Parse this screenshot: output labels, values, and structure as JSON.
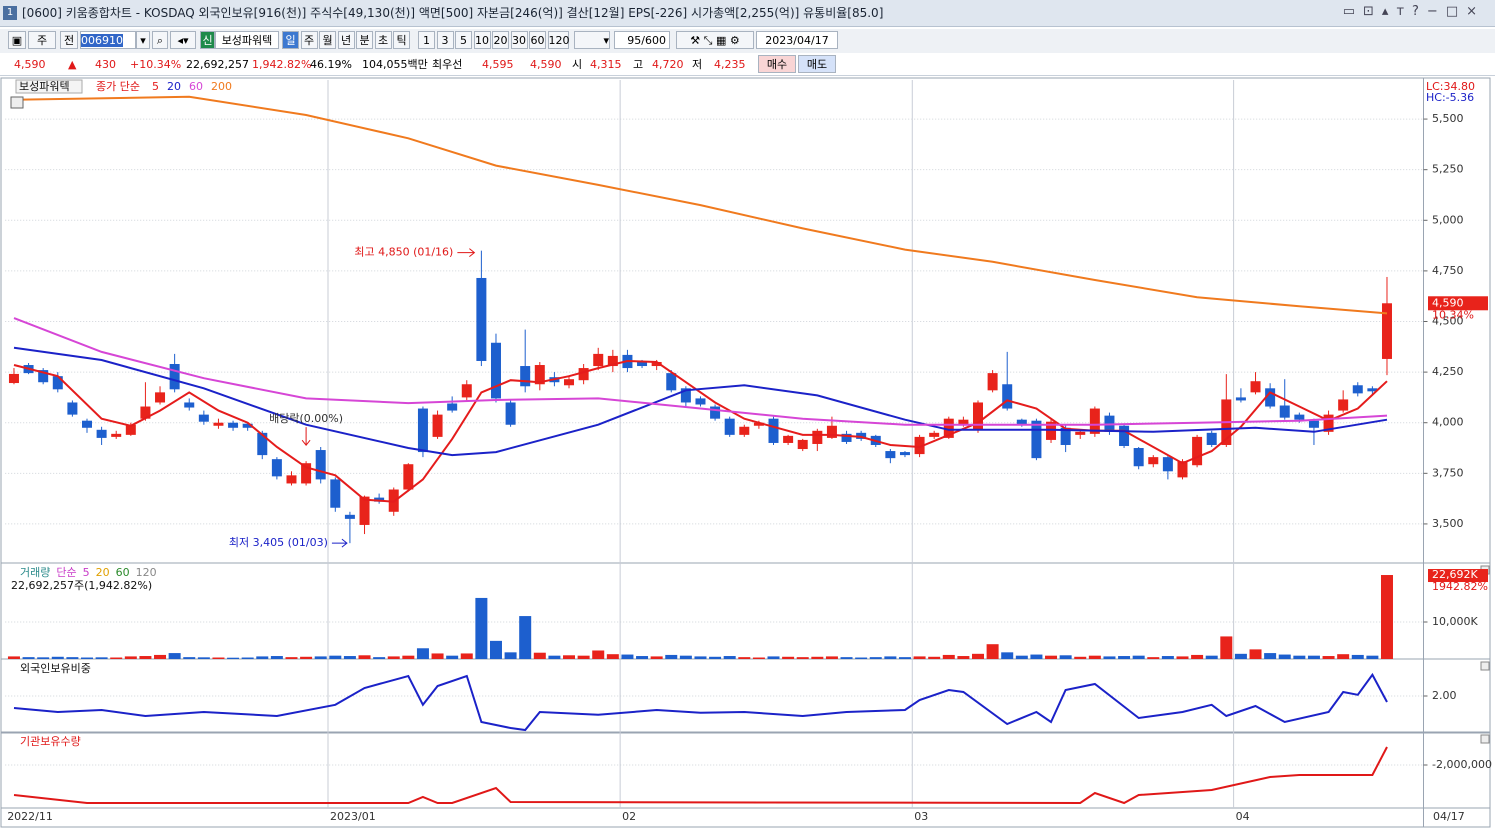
{
  "window": {
    "title": "[0600] 키움종합차트 - KOSDAQ 외국인보유[916(천)] 주식수[49,130(천)] 액면[500] 자본금[246(억)] 결산[12월] EPS[-226] 시가총액[2,255(억)] 유통비율[85.0]"
  },
  "toolbar": {
    "period": "주",
    "range": "전",
    "code": "006910",
    "badge": "신",
    "name": "보성파워텍",
    "units": [
      "일",
      "주",
      "월",
      "년",
      "분",
      "초",
      "틱"
    ],
    "minutes": [
      "1",
      "3",
      "5",
      "10",
      "20",
      "30",
      "60",
      "120"
    ],
    "count": "95/600",
    "date": "2023/04/17"
  },
  "quote": {
    "price": "4,590",
    "arrow": "▲",
    "change": "430",
    "rate": "+10.34%",
    "volume": "22,692,257",
    "volume_rate": "1,942.82%",
    "turnover": "46.19%",
    "amount": "104,055백만",
    "best": "최우선",
    "ask": "4,595",
    "bid": "4,590",
    "open_label": "시",
    "open": "4,315",
    "high_label": "고",
    "high": "4,720",
    "low_label": "저",
    "low": "4,235",
    "buy": "매수",
    "sell": "매도"
  },
  "chart_data": [
    {
      "type": "candlestick",
      "name": "보성파워텍",
      "legend_title": "종가 단순",
      "up_color": "#e8231b",
      "down_color": "#1d5fce",
      "open": [
        4196,
        4285,
        4260,
        4230,
        4100,
        4010,
        3965,
        3930,
        3940,
        4020,
        4100,
        4290,
        4100,
        4040,
        3985,
        4000,
        3995,
        3950,
        3820,
        3700,
        3700,
        3865,
        3720,
        3545,
        3495,
        3630,
        3560,
        3670,
        4070,
        3930,
        4095,
        4125,
        4715,
        4395,
        4100,
        4280,
        4190,
        4225,
        4185,
        4210,
        4280,
        4280,
        4335,
        4300,
        4280,
        4245,
        4170,
        4120,
        4080,
        4020,
        3940,
        3985,
        4020,
        3900,
        3870,
        3895,
        3925,
        3945,
        3950,
        3935,
        3860,
        3855,
        3845,
        3930,
        3925,
        3990,
        3965,
        4160,
        4190,
        4015,
        4010,
        3915,
        3975,
        3940,
        3945,
        4035,
        3985,
        3875,
        3795,
        3830,
        3730,
        3790,
        3950,
        3890,
        4125,
        4150,
        4170,
        4085,
        4040,
        4010,
        3955,
        4060,
        4185,
        4170,
        4315
      ],
      "high": [
        4270,
        4295,
        4270,
        4250,
        4110,
        4020,
        3980,
        3960,
        4000,
        4200,
        4180,
        4340,
        4120,
        4060,
        4020,
        4010,
        4000,
        3960,
        3830,
        3760,
        3810,
        3880,
        3730,
        3560,
        3640,
        3650,
        3680,
        3800,
        4080,
        4060,
        4130,
        4210,
        4850,
        4440,
        4110,
        4460,
        4300,
        4250,
        4230,
        4290,
        4370,
        4360,
        4360,
        4310,
        4310,
        4260,
        4180,
        4130,
        4090,
        4030,
        3990,
        4010,
        4030,
        3940,
        3920,
        3970,
        4030,
        3960,
        3960,
        3940,
        3870,
        3860,
        3940,
        3960,
        4030,
        4030,
        4110,
        4260,
        4350,
        4020,
        4020,
        4020,
        3990,
        3960,
        4080,
        4050,
        3990,
        3880,
        3840,
        3840,
        3820,
        3940,
        3960,
        4240,
        4170,
        4250,
        4195,
        4215,
        4050,
        4020,
        4060,
        4160,
        4200,
        4180,
        4720
      ],
      "low": [
        4190,
        4240,
        4190,
        4150,
        4030,
        3950,
        3890,
        3920,
        3935,
        4010,
        4090,
        4150,
        4060,
        3990,
        3970,
        3960,
        3960,
        3820,
        3720,
        3690,
        3690,
        3700,
        3560,
        3405,
        3450,
        3600,
        3540,
        3660,
        3830,
        3920,
        4050,
        4110,
        4280,
        4100,
        3980,
        4150,
        4160,
        4180,
        4170,
        4190,
        4260,
        4250,
        4250,
        4270,
        4260,
        4150,
        4080,
        4080,
        4010,
        3930,
        3930,
        3970,
        3890,
        3890,
        3860,
        3860,
        3920,
        3895,
        3910,
        3880,
        3800,
        3830,
        3830,
        3920,
        3920,
        3980,
        3950,
        4150,
        4060,
        3980,
        3815,
        3900,
        3855,
        3920,
        3930,
        3940,
        3875,
        3770,
        3780,
        3720,
        3720,
        3780,
        3880,
        3880,
        4100,
        4140,
        4070,
        4015,
        4000,
        3890,
        3940,
        4050,
        4130,
        4140,
        4235
      ],
      "close": [
        4241,
        4245,
        4200,
        4165,
        4040,
        3975,
        3925,
        3945,
        3990,
        4080,
        4150,
        4165,
        4075,
        4005,
        4000,
        3975,
        3975,
        3840,
        3735,
        3740,
        3800,
        3720,
        3580,
        3525,
        3635,
        3610,
        3670,
        3795,
        3855,
        4040,
        4060,
        4190,
        4305,
        4120,
        3990,
        4180,
        4285,
        4200,
        4215,
        4270,
        4340,
        4330,
        4270,
        4280,
        4300,
        4160,
        4100,
        4090,
        4020,
        3940,
        3980,
        4000,
        3900,
        3935,
        3915,
        3960,
        3985,
        3905,
        3920,
        3890,
        3825,
        3840,
        3930,
        3950,
        4020,
        4015,
        4100,
        4245,
        4070,
        3990,
        3825,
        4005,
        3890,
        3955,
        4070,
        3955,
        3885,
        3785,
        3830,
        3760,
        3810,
        3930,
        3890,
        4115,
        4110,
        4205,
        4080,
        4025,
        4015,
        3975,
        4040,
        4115,
        4145,
        4155,
        4590
      ],
      "series": [
        {
          "name": "5",
          "color": "#e51c1c",
          "x": [
            0,
            3,
            6,
            8,
            10,
            12,
            14,
            16,
            18,
            20,
            22,
            24,
            26,
            28,
            30,
            32,
            34,
            36,
            38,
            40,
            42,
            44,
            46,
            48,
            50,
            52,
            54,
            56,
            58,
            60,
            62,
            64,
            66,
            68,
            70,
            72,
            74,
            76,
            78,
            80,
            82,
            84,
            86,
            88,
            90,
            92,
            94
          ],
          "values": [
            4285,
            4230,
            4020,
            3985,
            4060,
            4150,
            4060,
            4000,
            3880,
            3780,
            3740,
            3620,
            3610,
            3720,
            3920,
            4150,
            4210,
            4200,
            4230,
            4270,
            4305,
            4300,
            4200,
            4100,
            4020,
            3980,
            3940,
            3940,
            3930,
            3890,
            3880,
            3940,
            4000,
            4110,
            4070,
            3970,
            3960,
            3960,
            3880,
            3800,
            3860,
            3980,
            4150,
            4080,
            4010,
            4070,
            4205
          ]
        },
        {
          "name": "20",
          "color": "#1b22c8",
          "x": [
            0,
            6,
            13,
            20,
            27,
            30,
            33,
            40,
            46,
            50,
            55,
            61,
            64,
            71,
            78,
            85,
            89,
            94
          ],
          "values": [
            4370,
            4310,
            4170,
            3990,
            3875,
            3840,
            3855,
            3990,
            4160,
            4185,
            4135,
            4015,
            3965,
            3965,
            3955,
            3975,
            3955,
            4015
          ]
        },
        {
          "name": "60",
          "color": "#d646d6",
          "x": [
            0,
            6,
            13,
            20,
            27,
            33,
            40,
            47,
            54,
            61,
            67,
            74,
            81,
            88,
            94
          ],
          "values": [
            4517,
            4350,
            4220,
            4120,
            4097,
            4112,
            4120,
            4070,
            4020,
            3990,
            3990,
            3990,
            4000,
            4010,
            4035
          ]
        },
        {
          "name": "200",
          "color": "#f07a1e",
          "x": [
            0,
            12,
            20,
            27,
            33,
            40,
            47,
            54,
            61,
            67,
            74,
            81,
            88,
            94
          ],
          "values": [
            5595,
            5610,
            5520,
            5405,
            5270,
            5175,
            5075,
            4960,
            4855,
            4795,
            4705,
            4620,
            4575,
            4540
          ]
        }
      ],
      "xlim": [
        -0.6,
        96.5
      ],
      "ylim": [
        3307,
        5693
      ],
      "yticks": [
        {
          "value": 3500,
          "label": "3,500"
        },
        {
          "value": 3750,
          "label": "3,750"
        },
        {
          "value": 4000,
          "label": "4,000"
        },
        {
          "value": 4250,
          "label": "4,250"
        },
        {
          "value": 4500,
          "label": "4,500"
        },
        {
          "value": 4750,
          "label": "4,750"
        },
        {
          "value": 5000,
          "label": "5,000"
        },
        {
          "value": 5250,
          "label": "5,250"
        },
        {
          "value": 5500,
          "label": "5,500"
        }
      ],
      "xticks": [
        {
          "value": -0.6,
          "label": "2022/11"
        },
        {
          "value": 21.5,
          "label": "2023/01"
        },
        {
          "value": 41.5,
          "label": "02"
        },
        {
          "value": 61.5,
          "label": "03"
        },
        {
          "value": 83.5,
          "label": "04"
        }
      ],
      "x_end_label": "04/17",
      "grid": true,
      "current_label": "4,590",
      "current_rate": "10.34%",
      "lc": "LC:34.80",
      "hc": "HC:-5.36",
      "annotations": [
        {
          "text": "최고 4,850 (01/16)",
          "at": 32,
          "kind": "high"
        },
        {
          "text": "최저 3,405 (01/03)",
          "at": 23,
          "kind": "low"
        },
        {
          "text": "배당락(0.00%)",
          "at": 20,
          "kind": "event"
        }
      ]
    },
    {
      "type": "bar",
      "legend": [
        "거래량",
        "단순",
        "5",
        "20",
        "60",
        "120"
      ],
      "legend_colors": [
        "#2a8a8a",
        "#c83cc8",
        "#c83cc8",
        "#e0a000",
        "#2a8a2a",
        "#888888"
      ],
      "summary": "22,692,257주(1,942.82%)",
      "values": [
        700,
        500,
        450,
        600,
        500,
        400,
        450,
        400,
        700,
        800,
        1100,
        1600,
        500,
        450,
        400,
        350,
        400,
        700,
        800,
        500,
        600,
        700,
        900,
        800,
        1000,
        500,
        700,
        900,
        2900,
        1500,
        900,
        1500,
        16500,
        4900,
        1800,
        11600,
        1700,
        900,
        1000,
        900,
        2300,
        1300,
        1200,
        800,
        700,
        1100,
        900,
        700,
        600,
        800,
        500,
        400,
        700,
        600,
        500,
        600,
        700,
        500,
        400,
        500,
        700,
        500,
        700,
        600,
        1100,
        800,
        1400,
        4000,
        1800,
        900,
        1200,
        900,
        1000,
        600,
        900,
        700,
        800,
        900,
        500,
        800,
        700,
        1100,
        900,
        6100,
        1400,
        2600,
        1600,
        1200,
        900,
        900,
        800,
        1300,
        1100,
        900,
        22692
      ],
      "ylim": [
        0,
        25400
      ],
      "yticks": [
        {
          "value": 10000,
          "label": "10,000K"
        }
      ],
      "current_label": "22,692K",
      "current_rate": "1942.82%"
    },
    {
      "type": "line",
      "title": "외국인보유비중",
      "title_color": "#111111",
      "series": [
        {
          "color": "#1b22c8",
          "x": [
            0,
            3,
            6,
            9,
            13,
            18,
            22,
            24,
            27,
            28,
            29,
            31,
            32,
            34,
            35,
            36,
            40,
            44,
            47,
            50,
            54,
            57,
            61,
            62,
            64,
            65,
            68,
            70,
            71,
            72,
            74,
            77,
            80,
            82,
            83,
            85,
            87,
            90,
            91,
            92,
            93,
            94
          ],
          "values": [
            1.7,
            1.6,
            1.65,
            1.5,
            1.6,
            1.5,
            1.78,
            2.2,
            2.5,
            1.78,
            2.25,
            2.5,
            1.35,
            1.2,
            1.15,
            1.6,
            1.53,
            1.65,
            1.58,
            1.6,
            1.5,
            1.6,
            1.65,
            1.9,
            2.15,
            2.1,
            1.3,
            1.6,
            1.35,
            2.15,
            2.3,
            1.45,
            1.6,
            1.78,
            1.5,
            1.75,
            1.35,
            1.6,
            2.1,
            2.03,
            2.53,
            1.85
          ]
        }
      ],
      "ylim": [
        1.075,
        2.875
      ],
      "yticks": [
        {
          "value": 2,
          "label": "2.00"
        }
      ]
    },
    {
      "type": "line",
      "title": "기관보유수량",
      "title_color": "#e01818",
      "series": [
        {
          "color": "#e01818",
          "x": [
            0,
            5,
            27,
            28,
            29,
            30,
            33,
            34,
            73,
            74,
            76,
            77,
            82,
            86,
            88,
            93,
            94
          ],
          "values": [
            -3500000,
            -3900000,
            -3900000,
            -3600000,
            -3900000,
            -3900000,
            -3150000,
            -3850000,
            -3900000,
            -3400000,
            -3900000,
            -3500000,
            -3250000,
            -2600000,
            -2500000,
            -2500000,
            -1100000
          ]
        }
      ],
      "ylim": [
        -4150000,
        -450000
      ],
      "yticks": [
        {
          "value": -2000000,
          "label": "-2,000,000"
        }
      ]
    }
  ]
}
